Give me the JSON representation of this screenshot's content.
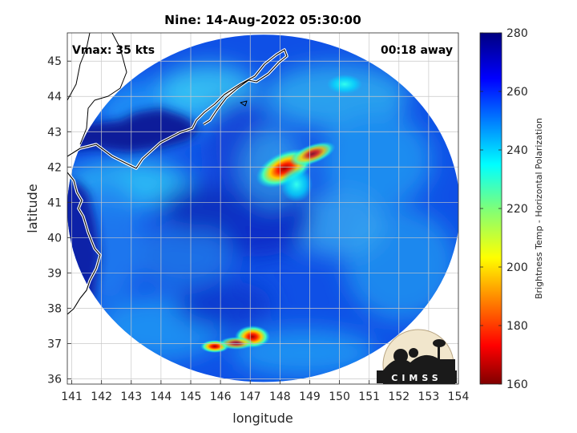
{
  "title": "Nine: 14-Aug-2022 05:30:00",
  "vmax_label": "Vmax: 35 kts",
  "away_label": "00:18 away",
  "axes": {
    "xlabel": "longitude",
    "ylabel": "latitude",
    "xlim": [
      140.85,
      154.0
    ],
    "ylim": [
      35.85,
      45.8
    ],
    "xticks": [
      141,
      142,
      143,
      144,
      145,
      146,
      147,
      148,
      149,
      150,
      151,
      152,
      153,
      154
    ],
    "yticks": [
      36,
      37,
      38,
      39,
      40,
      41,
      42,
      43,
      44,
      45
    ],
    "grid": true
  },
  "colorbar": {
    "label": "Brightness Temp - Horizontal Polarization",
    "min": 160,
    "max": 280,
    "ticks": [
      160,
      180,
      200,
      220,
      240,
      260,
      280
    ]
  },
  "swath": {
    "center_lon": 147.45,
    "center_lat": 40.83,
    "radius_lon": 6.6,
    "radius_lat": 4.92
  },
  "warm_features": [
    {
      "lon": 147.9,
      "lat": 41.9,
      "min_temp": 172
    },
    {
      "lon": 147.2,
      "lat": 37.2,
      "min_temp": 178
    },
    {
      "lon": 145.7,
      "lat": 36.95,
      "min_temp": 182
    },
    {
      "lon": 150.1,
      "lat": 44.3,
      "min_temp": 232
    }
  ],
  "logo_text": "CIMSS"
}
